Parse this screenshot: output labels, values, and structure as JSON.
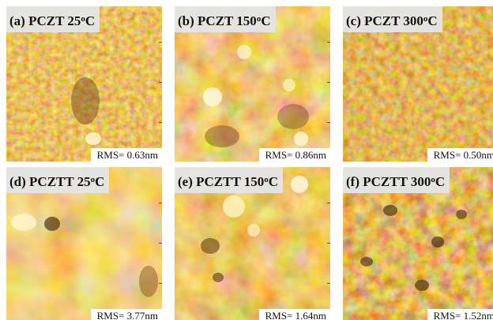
{
  "figure": {
    "panels": [
      {
        "key": "a",
        "name": "(a) PCZT 25",
        "unit": "C",
        "superscript": "o",
        "rms": "RMS= 0.63nm",
        "tone": [
          "#5c2a00",
          "#b8640a",
          "#e9a93a",
          "#fbe9a6"
        ]
      },
      {
        "key": "b",
        "name": "(b) PCZT 150",
        "unit": "C",
        "superscript": "o",
        "rms": "RMS= 0.86nm",
        "tone": [
          "#6a3200",
          "#c27212",
          "#eeb04a",
          "#fff2c4"
        ]
      },
      {
        "key": "c",
        "name": "(c) PCZT 300",
        "unit": "C",
        "superscript": "o",
        "rms": "RMS= 0.50nm",
        "tone": [
          "#4d2300",
          "#a85808",
          "#e29c30",
          "#f8dd8a"
        ]
      },
      {
        "key": "d",
        "name": "(d) PCZTT 25",
        "unit": "C",
        "superscript": "o",
        "rms": "RMS= 3.77nm",
        "tone": [
          "#7a3c02",
          "#cf8218",
          "#f1b850",
          "#fbe6a8"
        ]
      },
      {
        "key": "e",
        "name": "(e) PCZTT 150",
        "unit": "C",
        "superscript": "o",
        "rms": "RMS= 1.64nm",
        "tone": [
          "#5e2b00",
          "#bb6a0e",
          "#eaa93e",
          "#fdf0c2"
        ]
      },
      {
        "key": "f",
        "name": "(f) PCZTT 300",
        "unit": "C",
        "superscript": "o",
        "rms": "RMS= 1.52nm",
        "tone": [
          "#3a1800",
          "#a05208",
          "#e3a238",
          "#f9e09a"
        ]
      }
    ]
  }
}
